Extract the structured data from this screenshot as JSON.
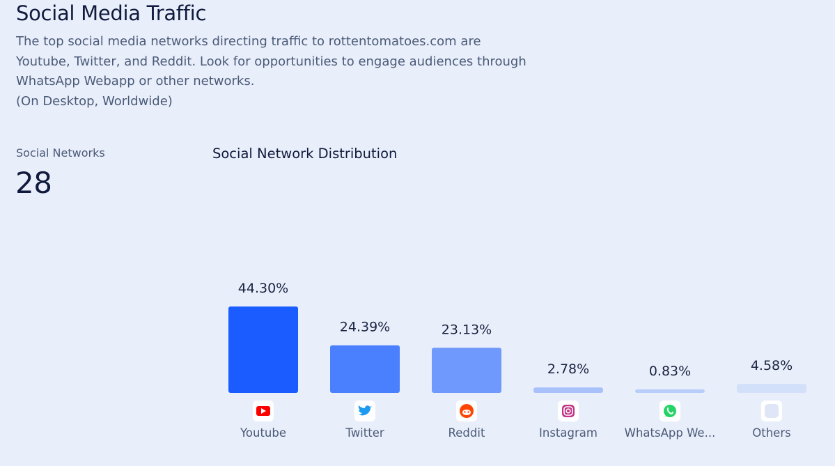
{
  "header": {
    "title": "Social Media Traffic",
    "description_lines": [
      "The top social media networks directing traffic to rottentomatoes.com are",
      "Youtube, Twitter, and Reddit. Look for opportunities to engage audiences through",
      "WhatsApp Webapp or other networks.",
      "(On Desktop, Worldwide)"
    ]
  },
  "metric": {
    "label": "Social Networks",
    "value": "28"
  },
  "chart_data": {
    "type": "bar",
    "title": "Social Network Distribution",
    "categories": [
      "Youtube",
      "Twitter",
      "Reddit",
      "Instagram",
      "WhatsApp We...",
      "Others"
    ],
    "values": [
      44.3,
      24.39,
      23.13,
      2.78,
      0.83,
      4.58
    ],
    "value_labels": [
      "44.30%",
      "24.39%",
      "23.13%",
      "2.78%",
      "0.83%",
      "4.58%"
    ],
    "icons": [
      "youtube-icon",
      "twitter-icon",
      "reddit-icon",
      "instagram-icon",
      "whatsapp-icon",
      "others-icon"
    ],
    "bar_colors": [
      "#1a5cff",
      "#4a7ffd",
      "#7099fd",
      "#a9c1fb",
      "#b9cdfa",
      "#d3e0fa"
    ],
    "icon_colors": [
      "#ff0000",
      "#1d9bf0",
      "#ff4500",
      "#c13584",
      "#25d366",
      "#dfe6f7"
    ],
    "xlabel": "",
    "ylabel": "",
    "grid": false,
    "legend": "none"
  }
}
